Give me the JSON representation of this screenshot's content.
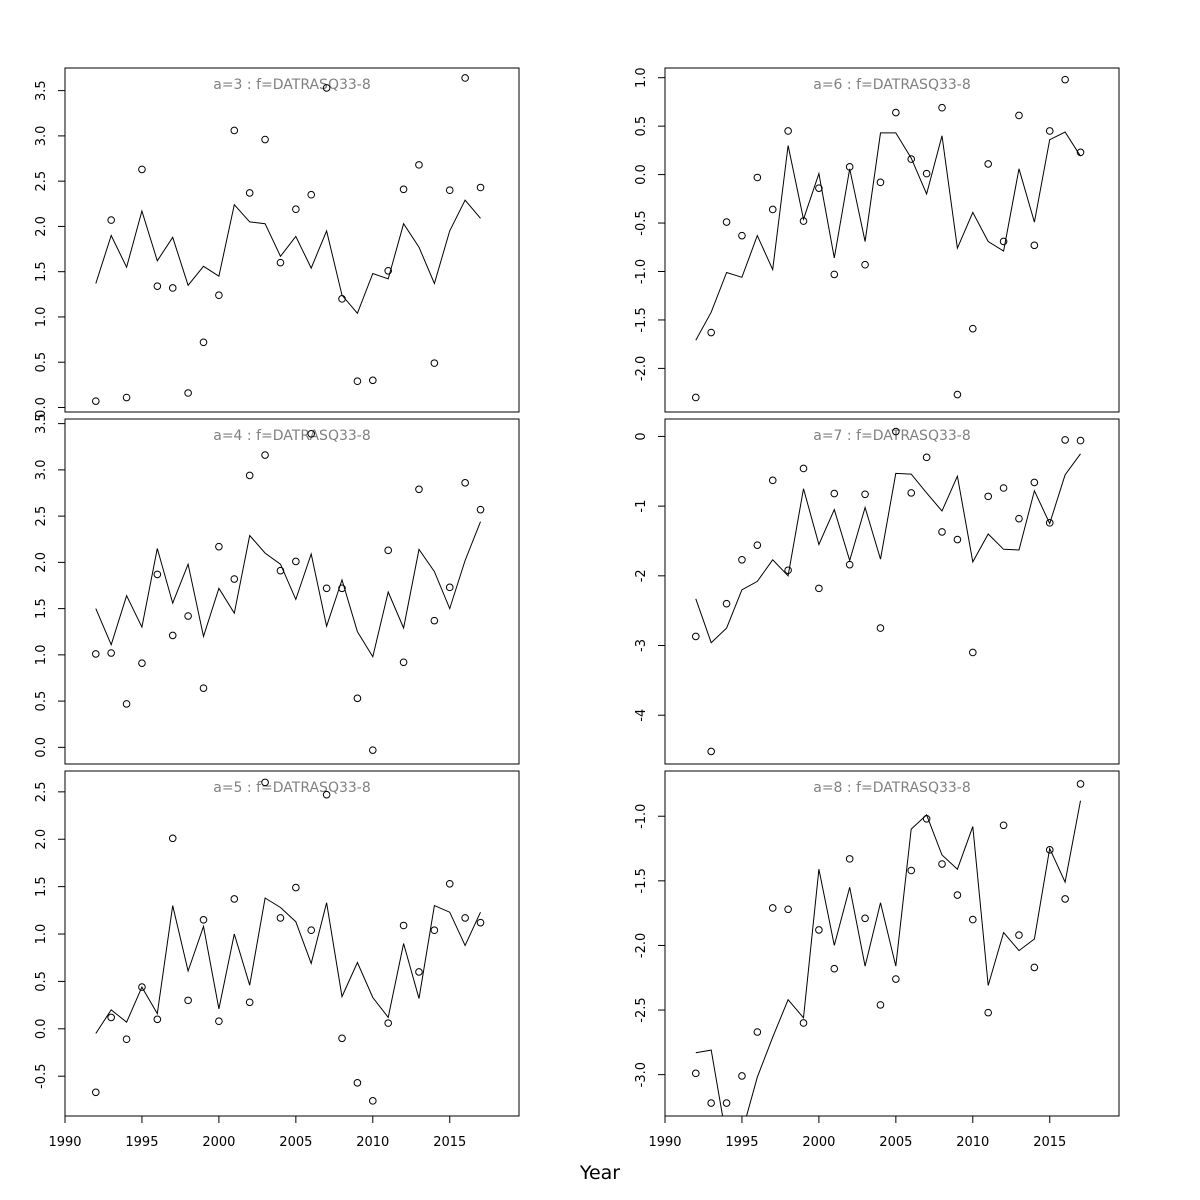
{
  "figure": {
    "xlabel": "Year",
    "xlim": [
      1990,
      2019.5
    ],
    "xticks": [
      1990,
      1995,
      2000,
      2005,
      2010,
      2015
    ]
  },
  "chart_data": [
    {
      "type": "scatter",
      "title": "a=3  :  f=DATRASQ33-8",
      "ylim": [
        -0.05,
        3.75
      ],
      "yticks": [
        0.0,
        0.5,
        1.0,
        1.5,
        2.0,
        2.5,
        3.0,
        3.5
      ],
      "ytick_labels": [
        "0.0",
        "0.5",
        "1.0",
        "1.5",
        "2.0",
        "2.5",
        "3.0",
        "3.5"
      ],
      "x": [
        1992,
        1993,
        1994,
        1995,
        1996,
        1997,
        1998,
        1999,
        2000,
        2001,
        2002,
        2003,
        2004,
        2005,
        2006,
        2007,
        2008,
        2009,
        2010,
        2011,
        2012,
        2013,
        2014,
        2015,
        2016,
        2017
      ],
      "points": [
        0.07,
        2.07,
        0.11,
        2.63,
        1.34,
        1.32,
        0.16,
        0.72,
        1.24,
        3.06,
        2.37,
        2.96,
        1.6,
        2.19,
        2.35,
        3.53,
        1.2,
        0.29,
        0.3,
        1.51,
        2.41,
        2.68,
        0.49,
        2.4,
        3.64,
        2.43
      ],
      "line": [
        1.37,
        1.9,
        1.55,
        2.17,
        1.62,
        1.88,
        1.35,
        1.56,
        1.45,
        2.24,
        2.05,
        2.03,
        1.67,
        1.89,
        1.54,
        1.95,
        1.24,
        1.04,
        1.48,
        1.42,
        2.03,
        1.77,
        1.37,
        1.95,
        2.29,
        2.09
      ]
    },
    {
      "type": "scatter",
      "title": "a=6  :  f=DATRASQ33-8",
      "ylim": [
        -2.45,
        1.1
      ],
      "yticks": [
        -2.0,
        -1.5,
        -1.0,
        -0.5,
        0.0,
        0.5,
        1.0
      ],
      "ytick_labels": [
        "-2.0",
        "-1.5",
        "-1.0",
        "-0.5",
        "0.0",
        "0.5",
        "1.0"
      ],
      "x": [
        1992,
        1993,
        1994,
        1995,
        1996,
        1997,
        1998,
        1999,
        2000,
        2001,
        2002,
        2003,
        2004,
        2005,
        2006,
        2007,
        2008,
        2009,
        2010,
        2011,
        2012,
        2013,
        2014,
        2015,
        2016,
        2017
      ],
      "points": [
        -2.3,
        -1.63,
        -0.49,
        -0.63,
        -0.03,
        -0.36,
        0.45,
        -0.48,
        -0.14,
        -1.03,
        0.08,
        -0.93,
        -0.08,
        0.64,
        0.16,
        0.01,
        0.69,
        -2.27,
        -1.59,
        0.11,
        -0.69,
        0.61,
        -0.73,
        0.45,
        0.98,
        0.23
      ],
      "line": [
        -1.71,
        -1.42,
        -1.01,
        -1.06,
        -0.63,
        -0.98,
        0.3,
        -0.46,
        0.01,
        -0.86,
        0.06,
        -0.69,
        0.43,
        0.43,
        0.17,
        -0.2,
        0.4,
        -0.76,
        -0.39,
        -0.69,
        -0.79,
        0.06,
        -0.49,
        0.36,
        0.44,
        0.19
      ]
    },
    {
      "type": "scatter",
      "title": "a=4  :  f=DATRASQ33-8",
      "ylim": [
        -0.18,
        3.55
      ],
      "yticks": [
        0.0,
        0.5,
        1.0,
        1.5,
        2.0,
        2.5,
        3.0,
        3.5
      ],
      "ytick_labels": [
        "0.0",
        "0.5",
        "1.0",
        "1.5",
        "2.0",
        "2.5",
        "3.0",
        "3.5"
      ],
      "x": [
        1992,
        1993,
        1994,
        1995,
        1996,
        1997,
        1998,
        1999,
        2000,
        2001,
        2002,
        2003,
        2004,
        2005,
        2006,
        2007,
        2008,
        2009,
        2010,
        2011,
        2012,
        2013,
        2014,
        2015,
        2016,
        2017
      ],
      "points": [
        1.01,
        1.02,
        0.47,
        0.91,
        1.87,
        1.21,
        1.42,
        0.64,
        2.17,
        1.82,
        2.94,
        3.16,
        1.91,
        2.01,
        3.39,
        1.72,
        1.72,
        0.53,
        -0.03,
        2.13,
        0.92,
        2.79,
        1.37,
        1.73,
        2.86,
        2.57
      ],
      "line": [
        1.5,
        1.11,
        1.64,
        1.3,
        2.15,
        1.56,
        1.98,
        1.2,
        1.72,
        1.45,
        2.29,
        2.1,
        1.98,
        1.6,
        2.09,
        1.31,
        1.81,
        1.25,
        0.98,
        1.68,
        1.29,
        2.14,
        1.9,
        1.5,
        2.02,
        2.44
      ]
    },
    {
      "type": "scatter",
      "title": "a=7  :  f=DATRASQ33-8",
      "ylim": [
        -4.7,
        0.25
      ],
      "yticks": [
        -4,
        -3,
        -2,
        -1,
        0
      ],
      "ytick_labels": [
        "-4",
        "-3",
        "-2",
        "-1",
        "0"
      ],
      "x": [
        1992,
        1993,
        1994,
        1995,
        1996,
        1997,
        1998,
        1999,
        2000,
        2001,
        2002,
        2003,
        2004,
        2005,
        2006,
        2007,
        2008,
        2009,
        2010,
        2011,
        2012,
        2013,
        2014,
        2015,
        2016,
        2017
      ],
      "points": [
        -2.87,
        -4.52,
        -2.4,
        -1.77,
        -1.56,
        -0.63,
        -1.92,
        -0.46,
        -2.18,
        -0.82,
        -1.84,
        -0.83,
        -2.75,
        0.07,
        -0.81,
        -0.3,
        -1.37,
        -1.48,
        -3.1,
        -0.86,
        -0.74,
        -1.18,
        -0.66,
        -1.24,
        -0.05,
        -0.06
      ],
      "line": [
        -2.33,
        -2.96,
        -2.75,
        -2.2,
        -2.08,
        -1.77,
        -2.0,
        -0.75,
        -1.55,
        -1.05,
        -1.78,
        -1.02,
        -1.76,
        -0.53,
        -0.54,
        -0.81,
        -1.07,
        -0.57,
        -1.8,
        -1.4,
        -1.62,
        -1.63,
        -0.78,
        -1.25,
        -0.55,
        -0.25
      ]
    },
    {
      "type": "scatter",
      "title": "a=5  :  f=DATRASQ33-8",
      "ylim": [
        -0.92,
        2.72
      ],
      "yticks": [
        -0.5,
        0.0,
        0.5,
        1.0,
        1.5,
        2.0,
        2.5
      ],
      "ytick_labels": [
        "-0.5",
        "0.0",
        "0.5",
        "1.0",
        "1.5",
        "2.0",
        "2.5"
      ],
      "x": [
        1992,
        1993,
        1994,
        1995,
        1996,
        1997,
        1998,
        1999,
        2000,
        2001,
        2002,
        2003,
        2004,
        2005,
        2006,
        2007,
        2008,
        2009,
        2010,
        2011,
        2012,
        2013,
        2014,
        2015,
        2016,
        2017
      ],
      "points": [
        -0.67,
        0.12,
        -0.11,
        0.44,
        0.1,
        2.01,
        0.3,
        1.15,
        0.08,
        1.37,
        0.28,
        2.6,
        1.17,
        1.49,
        1.04,
        2.47,
        -0.1,
        -0.57,
        -0.76,
        0.06,
        1.09,
        0.6,
        1.04,
        1.53,
        1.17,
        1.12
      ],
      "line": [
        -0.05,
        0.2,
        0.07,
        0.44,
        0.16,
        1.3,
        0.61,
        1.08,
        0.21,
        1.0,
        0.46,
        1.38,
        1.28,
        1.13,
        0.69,
        1.33,
        0.34,
        0.7,
        0.33,
        0.12,
        0.9,
        0.32,
        1.3,
        1.23,
        0.88,
        1.23
      ]
    },
    {
      "type": "scatter",
      "title": "a=8  :  f=DATRASQ33-8",
      "ylim": [
        -3.32,
        -0.65
      ],
      "yticks": [
        -3.0,
        -2.5,
        -2.0,
        -1.5,
        -1.0
      ],
      "ytick_labels": [
        "-3.0",
        "-2.5",
        "-2.0",
        "-1.5",
        "-1.0"
      ],
      "x": [
        1992,
        1993,
        1994,
        1995,
        1996,
        1997,
        1998,
        1999,
        2000,
        2001,
        2002,
        2003,
        2004,
        2005,
        2006,
        2007,
        2008,
        2009,
        2010,
        2011,
        2012,
        2013,
        2014,
        2015,
        2016,
        2017
      ],
      "points": [
        -2.99,
        -3.22,
        -3.22,
        -3.01,
        -2.67,
        -1.71,
        -1.72,
        -2.6,
        -1.88,
        -2.18,
        -1.33,
        -1.79,
        -2.46,
        -2.26,
        -1.42,
        -1.02,
        -1.37,
        -1.61,
        -1.8,
        -2.52,
        -1.07,
        -1.92,
        -2.17,
        -1.26,
        -1.64,
        -0.75
      ],
      "line": [
        -2.83,
        -2.81,
        -3.5,
        -3.45,
        -3.02,
        -2.71,
        -2.42,
        -2.56,
        -1.41,
        -2.0,
        -1.55,
        -2.16,
        -1.67,
        -2.16,
        -1.1,
        -0.99,
        -1.3,
        -1.41,
        -1.08,
        -2.31,
        -1.9,
        -2.04,
        -1.95,
        -1.25,
        -1.51,
        -0.88
      ]
    }
  ]
}
